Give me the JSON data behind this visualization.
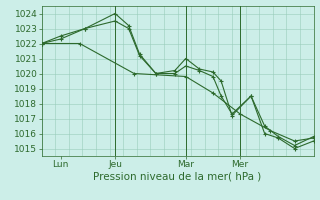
{
  "background_color": "#cceee8",
  "grid_color": "#99ccbb",
  "line_color": "#2d6a2d",
  "marker_color": "#2d6a2d",
  "xlabel": "Pression niveau de la mer( hPa )",
  "ylim": [
    1014.5,
    1024.5
  ],
  "yticks": [
    1015,
    1016,
    1017,
    1018,
    1019,
    1020,
    1021,
    1022,
    1023,
    1024
  ],
  "xtick_labels": [
    "Lun",
    "Jeu",
    "Mar",
    "Mer"
  ],
  "xtick_positions": [
    0.07,
    0.27,
    0.53,
    0.73
  ],
  "vlines": [
    0.27,
    0.53,
    0.73
  ],
  "series": [
    {
      "x": [
        0.0,
        0.07,
        0.16,
        0.27,
        0.32,
        0.36,
        0.42,
        0.49,
        0.53,
        0.58,
        0.63,
        0.66,
        0.7,
        0.77,
        0.82,
        0.87,
        0.93,
        1.0
      ],
      "y": [
        1022.0,
        1022.5,
        1023.0,
        1024.0,
        1023.2,
        1021.3,
        1020.0,
        1020.2,
        1021.0,
        1020.3,
        1020.1,
        1019.5,
        1017.2,
        1018.5,
        1016.0,
        1015.7,
        1015.0,
        1015.5
      ]
    },
    {
      "x": [
        0.0,
        0.07,
        0.16,
        0.27,
        0.32,
        0.36,
        0.42,
        0.49,
        0.53,
        0.58,
        0.63,
        0.66,
        0.7,
        0.77,
        0.82,
        0.87,
        0.93,
        1.0
      ],
      "y": [
        1022.0,
        1022.3,
        1023.0,
        1023.5,
        1023.0,
        1021.2,
        1020.0,
        1020.0,
        1020.5,
        1020.2,
        1019.8,
        1018.5,
        1017.3,
        1018.5,
        1016.5,
        1015.8,
        1015.2,
        1015.8
      ]
    },
    {
      "x": [
        0.0,
        0.14,
        0.34,
        0.53,
        0.63,
        0.73,
        0.84,
        0.93,
        1.0
      ],
      "y": [
        1022.0,
        1022.0,
        1020.0,
        1019.8,
        1018.7,
        1017.3,
        1016.2,
        1015.5,
        1015.7
      ]
    }
  ],
  "tick_fontsize": 6.5,
  "xlabel_fontsize": 7.5
}
